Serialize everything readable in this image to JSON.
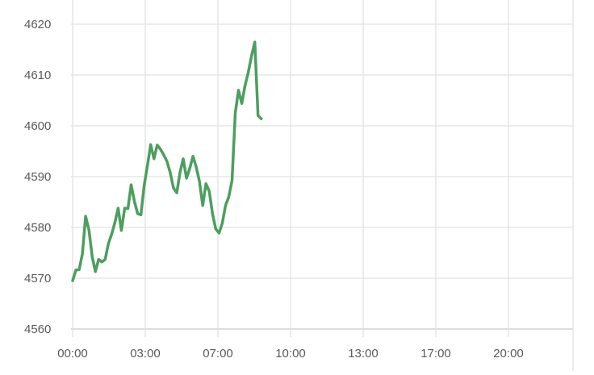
{
  "chart_data": {
    "type": "line",
    "title": "",
    "xlabel": "",
    "ylabel": "",
    "ylim": [
      4560,
      4620
    ],
    "y_ticks": [
      4560,
      4570,
      4580,
      4590,
      4600,
      4610,
      4620
    ],
    "x_ticks": [
      "00:00",
      "03:00",
      "07:00",
      "10:00",
      "13:00",
      "17:00",
      "20:00"
    ],
    "grid": true,
    "legend": "none",
    "line_color": "#4c9f5e",
    "series": [
      {
        "values": [
          4569.5,
          4571.6,
          4571.7,
          4574.8,
          4582.2,
          4579.5,
          4574.3,
          4571.3,
          4573.7,
          4573.2,
          4573.7,
          4576.8,
          4578.7,
          4581.0,
          4583.8,
          4579.4,
          4583.8,
          4583.7,
          4588.4,
          4585.1,
          4582.7,
          4582.5,
          4588.3,
          4592.2,
          4596.3,
          4593.5,
          4596.2,
          4595.4,
          4594.3,
          4593.0,
          4590.8,
          4587.8,
          4586.8,
          4590.8,
          4593.5,
          4589.7,
          4591.6,
          4594.0,
          4591.9,
          4589.0,
          4584.3,
          4588.6,
          4587.1,
          4582.7,
          4579.7,
          4578.9,
          4580.8,
          4584.3,
          4586.0,
          4589.2,
          4602.5,
          4607.0,
          4604.4,
          4607.9,
          4610.5,
          4613.7,
          4616.5,
          4602.0,
          4601.4
        ]
      }
    ]
  }
}
